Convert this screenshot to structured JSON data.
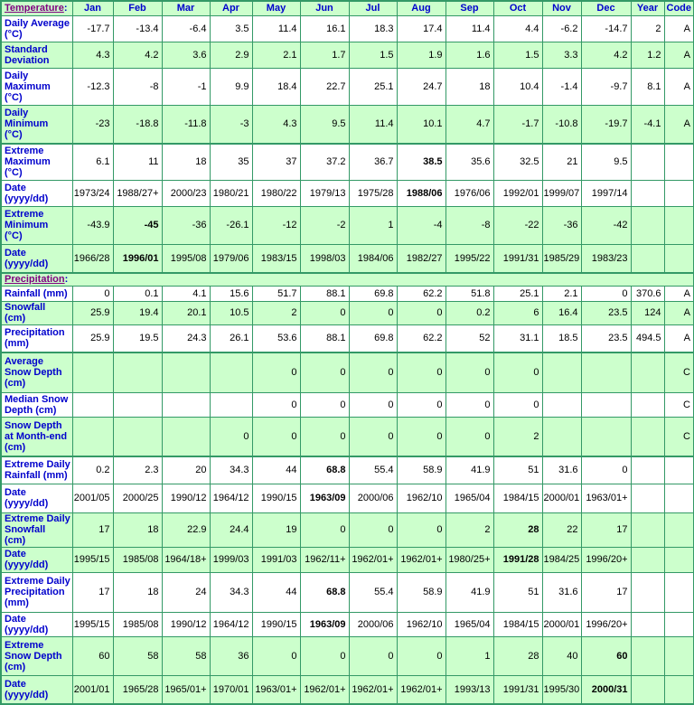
{
  "palette": {
    "grid_green": "#339966",
    "row_green": "#CCFFCC",
    "row_white": "#FFFFFF",
    "label_blue": "#0000CC",
    "link_purple": "#800080",
    "value_black": "#000000"
  },
  "temperature_header": {
    "link": "Temperature",
    "colon": ":",
    "months": [
      "Jan",
      "Feb",
      "Mar",
      "Apr",
      "May",
      "Jun",
      "Jul",
      "Aug",
      "Sep",
      "Oct",
      "Nov",
      "Dec"
    ],
    "year": "Year",
    "code": "Code"
  },
  "precipitation_header": {
    "link": "Precipitation",
    "colon": ":"
  },
  "rows": [
    {
      "name": "daily-average",
      "label": "Daily Average\n(°C)",
      "shade": "white",
      "sep": false,
      "values": [
        "-17.7",
        "-13.4",
        "-6.4",
        "3.5",
        "11.4",
        "16.1",
        "18.3",
        "17.4",
        "11.4",
        "4.4",
        "-6.2",
        "-14.7"
      ],
      "year": "2",
      "code": "A",
      "bold": []
    },
    {
      "name": "standard-deviation",
      "label": "Standard\nDeviation",
      "shade": "green",
      "sep": false,
      "values": [
        "4.3",
        "4.2",
        "3.6",
        "2.9",
        "2.1",
        "1.7",
        "1.5",
        "1.9",
        "1.6",
        "1.5",
        "3.3",
        "4.2"
      ],
      "year": "1.2",
      "code": "A",
      "bold": []
    },
    {
      "name": "daily-maximum",
      "label": "Daily\nMaximum\n(°C)",
      "shade": "white",
      "sep": false,
      "values": [
        "-12.3",
        "-8",
        "-1",
        "9.9",
        "18.4",
        "22.7",
        "25.1",
        "24.7",
        "18",
        "10.4",
        "-1.4",
        "-9.7"
      ],
      "year": "8.1",
      "code": "A",
      "bold": []
    },
    {
      "name": "daily-minimum",
      "label": "Daily\nMinimum\n(°C)",
      "shade": "green",
      "sep": false,
      "values": [
        "-23",
        "-18.8",
        "-11.8",
        "-3",
        "4.3",
        "9.5",
        "11.4",
        "10.1",
        "4.7",
        "-1.7",
        "-10.8",
        "-19.7"
      ],
      "year": "-4.1",
      "code": "A",
      "bold": []
    },
    {
      "name": "extreme-maximum",
      "label": "Extreme\nMaximum\n(°C)",
      "shade": "white",
      "sep": true,
      "values": [
        "6.1",
        "11",
        "18",
        "35",
        "37",
        "37.2",
        "36.7",
        "38.5",
        "35.6",
        "32.5",
        "21",
        "9.5"
      ],
      "year": "",
      "code": "",
      "bold": [
        7
      ]
    },
    {
      "name": "extreme-maximum-date",
      "label": "Date\n(yyyy/dd)",
      "shade": "white",
      "sep": false,
      "values": [
        "1973/24",
        "1988/27+",
        "2000/23",
        "1980/21",
        "1980/22",
        "1979/13",
        "1975/28",
        "1988/06",
        "1976/06",
        "1992/01",
        "1999/07",
        "1997/14"
      ],
      "year": "",
      "code": "",
      "bold": [
        7
      ]
    },
    {
      "name": "extreme-minimum",
      "label": "Extreme\nMinimum\n(°C)",
      "shade": "green",
      "sep": false,
      "values": [
        "-43.9",
        "-45",
        "-36",
        "-26.1",
        "-12",
        "-2",
        "1",
        "-4",
        "-8",
        "-22",
        "-36",
        "-42"
      ],
      "year": "",
      "code": "",
      "bold": [
        1
      ]
    },
    {
      "name": "extreme-minimum-date",
      "label": "Date\n(yyyy/dd)",
      "shade": "green",
      "sep": false,
      "values": [
        "1966/28",
        "1996/01",
        "1995/08",
        "1979/06",
        "1983/15",
        "1998/03",
        "1984/06",
        "1982/27",
        "1995/22",
        "1991/31",
        "1985/29",
        "1983/23"
      ],
      "year": "",
      "code": "",
      "bold": [
        1
      ]
    },
    {
      "name": "precipitation-section",
      "header": true,
      "shade": "green",
      "sep": true
    },
    {
      "name": "rainfall",
      "label": "Rainfall (mm)",
      "shade": "white",
      "sep": false,
      "values": [
        "0",
        "0.1",
        "4.1",
        "15.6",
        "51.7",
        "88.1",
        "69.8",
        "62.2",
        "51.8",
        "25.1",
        "2.1",
        "0"
      ],
      "year": "370.6",
      "code": "A",
      "bold": []
    },
    {
      "name": "snowfall",
      "label": "Snowfall\n(cm)",
      "shade": "green",
      "sep": false,
      "values": [
        "25.9",
        "19.4",
        "20.1",
        "10.5",
        "2",
        "0",
        "0",
        "0",
        "0.2",
        "6",
        "16.4",
        "23.5"
      ],
      "year": "124",
      "code": "A",
      "bold": []
    },
    {
      "name": "precipitation",
      "label": "Precipitation\n(mm)",
      "shade": "white",
      "sep": false,
      "values": [
        "25.9",
        "19.5",
        "24.3",
        "26.1",
        "53.6",
        "88.1",
        "69.8",
        "62.2",
        "52",
        "31.1",
        "18.5",
        "23.5"
      ],
      "year": "494.5",
      "code": "A",
      "bold": []
    },
    {
      "name": "average-snow-depth",
      "label": "Average\nSnow Depth\n(cm)",
      "shade": "green",
      "sep": true,
      "values": [
        "",
        "",
        "",
        "",
        "0",
        "0",
        "0",
        "0",
        "0",
        "0",
        "",
        ""
      ],
      "year": "",
      "code": "C",
      "bold": []
    },
    {
      "name": "median-snow-depth",
      "label": "Median Snow\nDepth (cm)",
      "shade": "white",
      "sep": false,
      "values": [
        "",
        "",
        "",
        "",
        "0",
        "0",
        "0",
        "0",
        "0",
        "0",
        "",
        ""
      ],
      "year": "",
      "code": "C",
      "bold": []
    },
    {
      "name": "snow-depth-month-end",
      "label": "Snow Depth\nat Month-end\n(cm)",
      "shade": "green",
      "sep": false,
      "values": [
        "",
        "",
        "",
        "0",
        "0",
        "0",
        "0",
        "0",
        "0",
        "2",
        "",
        ""
      ],
      "year": "",
      "code": "C",
      "bold": []
    },
    {
      "name": "extreme-daily-rainfall",
      "label": "Extreme Daily\nRainfall (mm)",
      "shade": "white",
      "sep": true,
      "values": [
        "0.2",
        "2.3",
        "20",
        "34.3",
        "44",
        "68.8",
        "55.4",
        "58.9",
        "41.9",
        "51",
        "31.6",
        "0"
      ],
      "year": "",
      "code": "",
      "bold": [
        5
      ]
    },
    {
      "name": "extreme-daily-rainfall-date",
      "label": "Date\n(yyyy/dd)",
      "shade": "white",
      "sep": false,
      "values": [
        "2001/05",
        "2000/25",
        "1990/12",
        "1964/12",
        "1990/15",
        "1963/09",
        "2000/06",
        "1962/10",
        "1965/04",
        "1984/15",
        "2000/01",
        "1963/01+"
      ],
      "year": "",
      "code": "",
      "bold": [
        5
      ]
    },
    {
      "name": "extreme-daily-snowfall",
      "label": "Extreme Daily\nSnowfall\n(cm)",
      "shade": "green",
      "sep": false,
      "values": [
        "17",
        "18",
        "22.9",
        "24.4",
        "19",
        "0",
        "0",
        "0",
        "2",
        "28",
        "22",
        "17"
      ],
      "year": "",
      "code": "",
      "bold": [
        9
      ]
    },
    {
      "name": "extreme-daily-snowfall-date",
      "label": "Date\n(yyyy/dd)",
      "shade": "green",
      "sep": false,
      "values": [
        "1995/15",
        "1985/08",
        "1964/18+",
        "1999/03",
        "1991/03",
        "1962/11+",
        "1962/01+",
        "1962/01+",
        "1980/25+",
        "1991/28",
        "1984/25",
        "1996/20+"
      ],
      "year": "",
      "code": "",
      "bold": [
        9
      ]
    },
    {
      "name": "extreme-daily-precipitation",
      "label": "Extreme Daily\nPrecipitation\n(mm)",
      "shade": "white",
      "sep": false,
      "values": [
        "17",
        "18",
        "24",
        "34.3",
        "44",
        "68.8",
        "55.4",
        "58.9",
        "41.9",
        "51",
        "31.6",
        "17"
      ],
      "year": "",
      "code": "",
      "bold": [
        5
      ]
    },
    {
      "name": "extreme-daily-precipitation-date",
      "label": "Date\n(yyyy/dd)",
      "shade": "white",
      "sep": false,
      "values": [
        "1995/15",
        "1985/08",
        "1990/12",
        "1964/12",
        "1990/15",
        "1963/09",
        "2000/06",
        "1962/10",
        "1965/04",
        "1984/15",
        "2000/01",
        "1996/20+"
      ],
      "year": "",
      "code": "",
      "bold": [
        5
      ]
    },
    {
      "name": "extreme-snow-depth",
      "label": "Extreme\nSnow Depth\n(cm)",
      "shade": "green",
      "sep": false,
      "values": [
        "60",
        "58",
        "58",
        "36",
        "0",
        "0",
        "0",
        "0",
        "1",
        "28",
        "40",
        "60"
      ],
      "year": "",
      "code": "",
      "bold": [
        11
      ]
    },
    {
      "name": "extreme-snow-depth-date",
      "label": "Date\n(yyyy/dd)",
      "shade": "green",
      "sep": false,
      "values": [
        "2001/01",
        "1965/28",
        "1965/01+",
        "1970/01",
        "1963/01+",
        "1962/01+",
        "1962/01+",
        "1962/01+",
        "1993/13",
        "1991/31",
        "1995/30",
        "2000/31"
      ],
      "year": "",
      "code": "",
      "bold": [
        11
      ]
    }
  ]
}
